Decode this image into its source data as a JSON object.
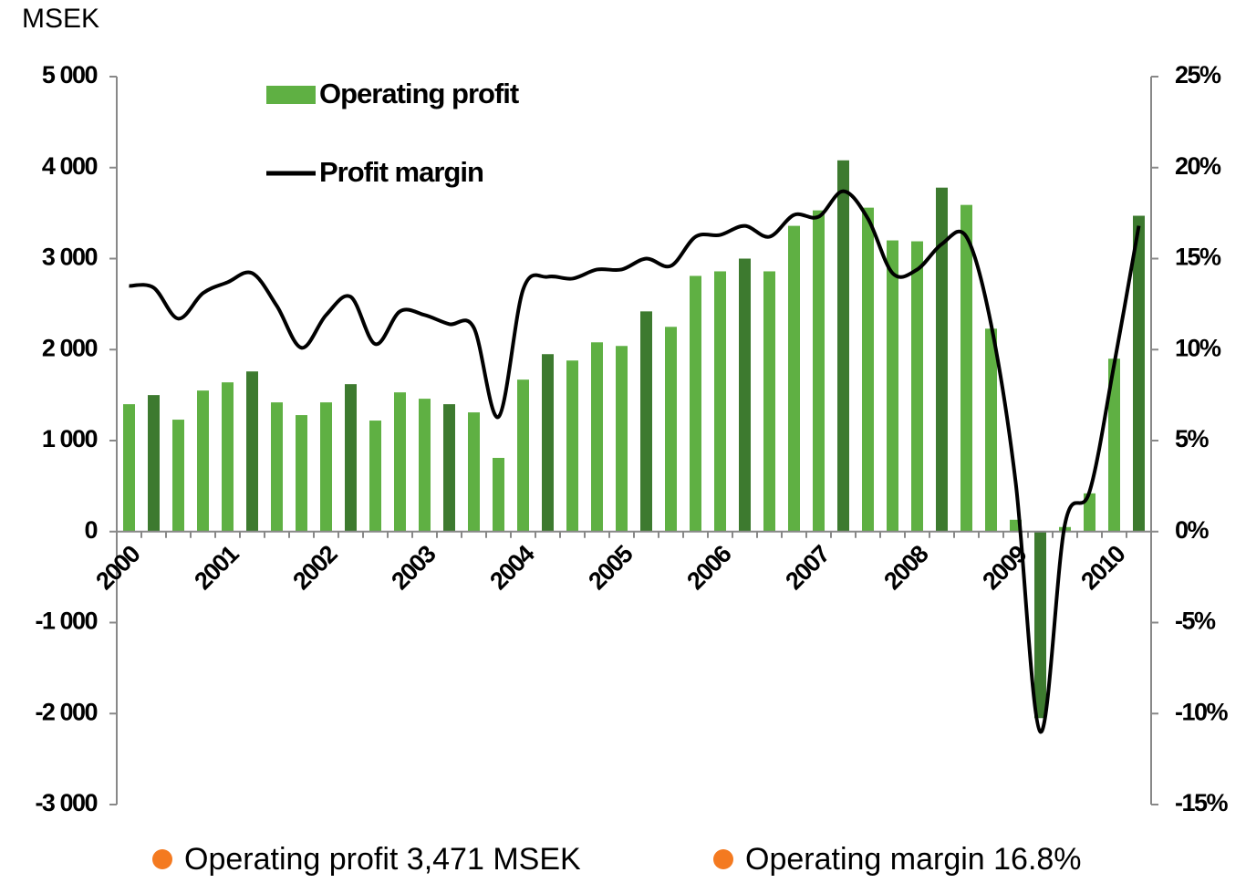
{
  "chart_data": {
    "type": "bar",
    "y_axis_label": "MSEK",
    "categories": [
      "2000",
      null,
      null,
      null,
      "2001",
      null,
      null,
      null,
      "2002",
      null,
      null,
      null,
      "2003",
      null,
      null,
      null,
      "2004",
      null,
      null,
      null,
      "2005",
      null,
      null,
      null,
      "2006",
      null,
      null,
      null,
      "2007",
      null,
      null,
      null,
      "2008",
      null,
      null,
      null,
      "2009",
      null,
      null,
      null,
      "2010",
      null
    ],
    "series": [
      {
        "name": "Operating profit",
        "type": "bar",
        "color": "#5fb043",
        "colors": [
          "#5fb043",
          "#3d7a2f",
          "#5fb043",
          "#5fb043",
          "#5fb043",
          "#3d7a2f",
          "#5fb043",
          "#5fb043",
          "#5fb043",
          "#3d7a2f",
          "#5fb043",
          "#5fb043",
          "#5fb043",
          "#3d7a2f",
          "#5fb043",
          "#5fb043",
          "#5fb043",
          "#3d7a2f",
          "#5fb043",
          "#5fb043",
          "#5fb043",
          "#3d7a2f",
          "#5fb043",
          "#5fb043",
          "#5fb043",
          "#3d7a2f",
          "#5fb043",
          "#5fb043",
          "#5fb043",
          "#3d7a2f",
          "#5fb043",
          "#5fb043",
          "#5fb043",
          "#3d7a2f",
          "#5fb043",
          "#5fb043",
          "#5fb043",
          "#3d7a2f",
          "#5fb043",
          "#5fb043",
          "#5fb043",
          "#3d7a2f"
        ],
        "values": [
          1400,
          1500,
          1230,
          1550,
          1640,
          1760,
          1420,
          1280,
          1420,
          1620,
          1220,
          1530,
          1460,
          1400,
          1310,
          810,
          1670,
          1950,
          1880,
          2080,
          2040,
          2420,
          2250,
          2810,
          2860,
          3000,
          2860,
          3360,
          3530,
          4080,
          3560,
          3200,
          3190,
          3780,
          3590,
          2230,
          130,
          -2050,
          50,
          420,
          1900,
          3471
        ]
      },
      {
        "name": "Profit margin",
        "type": "line",
        "color": "#000000",
        "axis": "y2",
        "values": [
          13.5,
          13.4,
          11.7,
          13.1,
          13.7,
          14.2,
          12.4,
          10.1,
          11.9,
          12.9,
          10.3,
          12.1,
          11.9,
          11.4,
          11.2,
          6.3,
          13.3,
          14.0,
          13.9,
          14.4,
          14.4,
          15.0,
          14.6,
          16.2,
          16.3,
          16.8,
          16.2,
          17.4,
          17.3,
          18.7,
          17.2,
          14.2,
          14.4,
          15.8,
          16.2,
          11.4,
          2.7,
          -11.0,
          0.4,
          2.2,
          9.2,
          16.8
        ]
      }
    ],
    "ylim": [
      -3000,
      5000
    ],
    "yticks": [
      {
        "value": -3000,
        "label": "-3 000"
      },
      {
        "value": -2000,
        "label": "-2 000"
      },
      {
        "value": -1000,
        "label": "-1 000"
      },
      0,
      {
        "value": 1000,
        "label": "1 000"
      },
      {
        "value": 2000,
        "label": "2 000"
      },
      {
        "value": 3000,
        "label": "3 000"
      },
      {
        "value": 4000,
        "label": "4 000"
      },
      {
        "value": 5000,
        "label": "5 000"
      }
    ],
    "y2lim": [
      -15,
      25
    ],
    "y2ticks": [
      {
        "value": -15,
        "label": "-15%"
      },
      {
        "value": -10,
        "label": "-10%"
      },
      {
        "value": -5,
        "label": "-5%"
      },
      {
        "value": 0,
        "label": "0%"
      },
      {
        "value": 5,
        "label": "5%"
      },
      {
        "value": 10,
        "label": "10%"
      },
      {
        "value": 15,
        "label": "15%"
      },
      {
        "value": 20,
        "label": "20%"
      },
      {
        "value": 25,
        "label": "25%"
      }
    ],
    "grid": false,
    "legend": "top-left",
    "notes": [
      "Operating profit 3,471 MSEK",
      "Operating margin 16.8%"
    ]
  }
}
